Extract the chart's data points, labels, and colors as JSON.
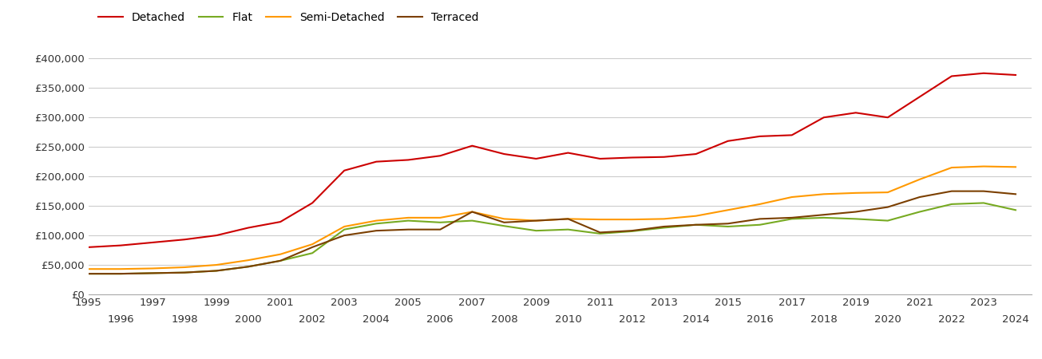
{
  "years": [
    1995,
    1996,
    1997,
    1998,
    1999,
    2000,
    2001,
    2002,
    2003,
    2004,
    2005,
    2006,
    2007,
    2008,
    2009,
    2010,
    2011,
    2012,
    2013,
    2014,
    2015,
    2016,
    2017,
    2018,
    2019,
    2020,
    2021,
    2022,
    2023,
    2024
  ],
  "detached": [
    80000,
    83000,
    88000,
    93000,
    100000,
    113000,
    123000,
    155000,
    210000,
    225000,
    228000,
    235000,
    252000,
    238000,
    230000,
    240000,
    230000,
    232000,
    233000,
    238000,
    260000,
    268000,
    270000,
    300000,
    308000,
    300000,
    335000,
    370000,
    375000,
    372000
  ],
  "flat": [
    35000,
    35000,
    36000,
    37000,
    40000,
    47000,
    57000,
    70000,
    110000,
    120000,
    125000,
    122000,
    125000,
    116000,
    108000,
    110000,
    103000,
    107000,
    113000,
    118000,
    115000,
    118000,
    128000,
    130000,
    128000,
    125000,
    140000,
    153000,
    155000,
    143000
  ],
  "semi_detached": [
    43000,
    43000,
    44000,
    46000,
    50000,
    58000,
    68000,
    85000,
    115000,
    125000,
    130000,
    130000,
    140000,
    128000,
    125000,
    128000,
    127000,
    127000,
    128000,
    133000,
    143000,
    153000,
    165000,
    170000,
    172000,
    173000,
    195000,
    215000,
    217000,
    216000
  ],
  "terraced": [
    35000,
    35000,
    36000,
    37000,
    40000,
    47000,
    57000,
    80000,
    100000,
    108000,
    110000,
    110000,
    140000,
    122000,
    125000,
    128000,
    105000,
    108000,
    115000,
    118000,
    120000,
    128000,
    130000,
    135000,
    140000,
    148000,
    165000,
    175000,
    175000,
    170000
  ],
  "colors": {
    "detached": "#cc0000",
    "flat": "#77aa22",
    "semi_detached": "#ff9900",
    "terraced": "#7B3F00"
  },
  "ylim": [
    0,
    420000
  ],
  "yticks": [
    0,
    50000,
    100000,
    150000,
    200000,
    250000,
    300000,
    350000,
    400000
  ],
  "background_color": "#ffffff",
  "grid_color": "#cccccc",
  "odd_years": [
    1995,
    1997,
    1999,
    2001,
    2003,
    2005,
    2007,
    2009,
    2011,
    2013,
    2015,
    2017,
    2019,
    2021,
    2023
  ],
  "even_years": [
    1996,
    1998,
    2000,
    2002,
    2004,
    2006,
    2008,
    2010,
    2012,
    2014,
    2016,
    2018,
    2020,
    2022,
    2024
  ]
}
